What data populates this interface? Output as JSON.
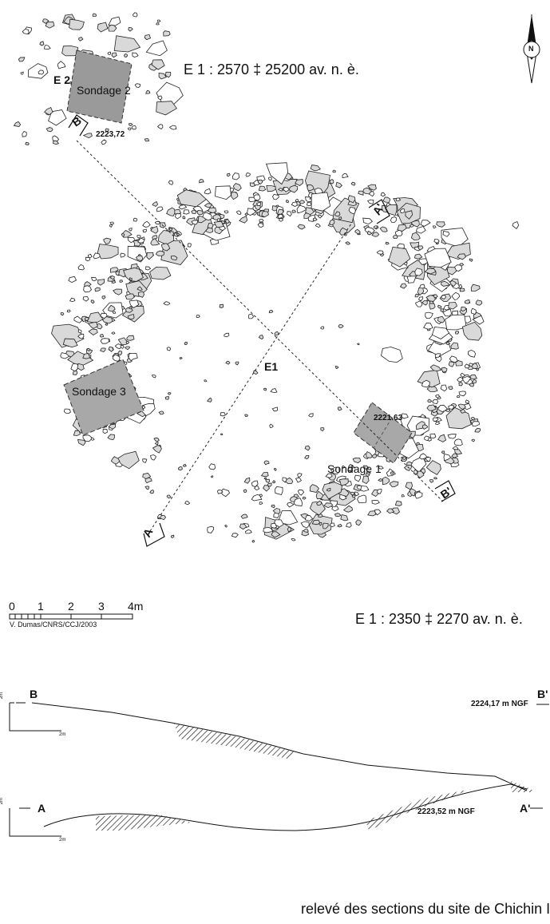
{
  "structures": {
    "e2_label": "E 2",
    "e1_label": "E1"
  },
  "soundings": {
    "s1": "Sondage 1",
    "s2": "Sondage 2",
    "s3": "Sondage 3"
  },
  "datings": {
    "e1_upper": "E 1 : 2570 ‡ 25200 av. n. è.",
    "e1_lower": "E 1 : 2350 ‡ 2270 av. n. è."
  },
  "elevations": {
    "sondage2": "2223,72",
    "sondage1": "2221.63",
    "section_b": "2224,17 m NGF",
    "section_a": "2223,52 m NGF"
  },
  "section_lines": {
    "a": "A",
    "a_prime": "A'",
    "b": "B",
    "b_prime": "B'"
  },
  "scale_bar": {
    "ticks": [
      "0",
      "1",
      "2",
      "3",
      "4m"
    ],
    "credit": "V. Dumas/CNRS/CCJ/2003",
    "section_scale": "2m"
  },
  "north_arrow": {
    "label": "N"
  },
  "caption": "relevé des sections du site de Chichin II"
}
